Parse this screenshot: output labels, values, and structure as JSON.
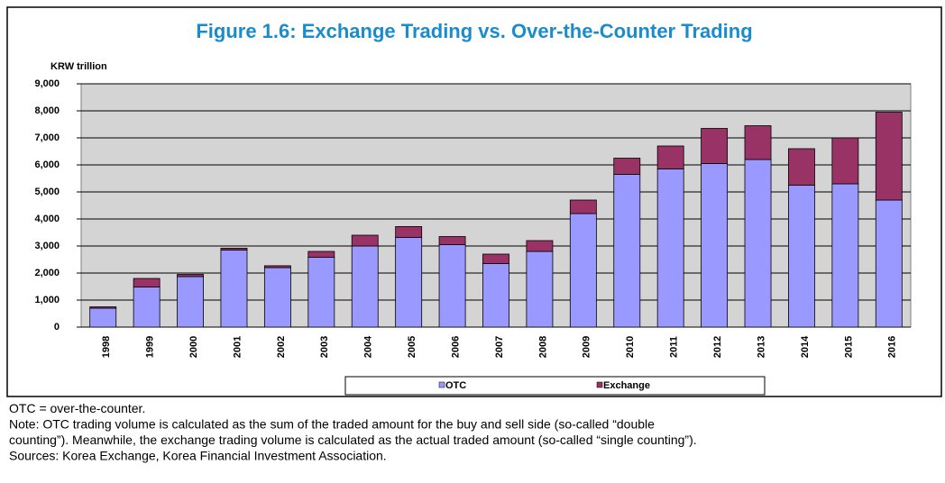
{
  "chart_data": {
    "type": "stacked_bar",
    "title": "Figure 1.6: Exchange Trading vs. Over-the-Counter Trading",
    "y_label": "KRW trillion",
    "categories": [
      "1998",
      "1999",
      "2000",
      "2001",
      "2002",
      "2003",
      "2004",
      "2005",
      "2006",
      "2007",
      "2008",
      "2009",
      "2010",
      "2011",
      "2012",
      "2013",
      "2014",
      "2015",
      "2016"
    ],
    "series": [
      {
        "name": "OTC",
        "color": "#9999ff",
        "values": [
          700,
          1480,
          1870,
          2850,
          2200,
          2580,
          3000,
          3320,
          3050,
          2350,
          2800,
          4200,
          5650,
          5850,
          6050,
          6200,
          5250,
          5300,
          4700
        ]
      },
      {
        "name": "Exchange",
        "color": "#993366",
        "values": [
          50,
          320,
          80,
          70,
          70,
          220,
          400,
          400,
          300,
          350,
          400,
          500,
          600,
          850,
          1300,
          1250,
          1350,
          1700,
          3250
        ]
      }
    ],
    "ylim": [
      0,
      9000
    ],
    "yticks": [
      0,
      {
        "value": 1000,
        "label": "1,000"
      },
      {
        "value": 2000,
        "label": "2,000"
      },
      {
        "value": 3000,
        "label": "3,000"
      },
      {
        "value": 4000,
        "label": "4,000"
      },
      {
        "value": 5000,
        "label": "5,000"
      },
      {
        "value": 6000,
        "label": "6,000"
      },
      {
        "value": 7000,
        "label": "7,000"
      },
      {
        "value": 8000,
        "label": "8,000"
      },
      {
        "value": 9000,
        "label": "9,000"
      }
    ],
    "grid": true,
    "legend": "bottom"
  },
  "notes": [
    "OTC = over-the-counter.",
    "Note: OTC trading volume is calculated as the sum of the traded amount for the buy and sell side (so-called “double",
    "counting”). Meanwhile, the exchange trading volume is calculated as the actual traded amount (so-called “single counting”).",
    "Sources: Korea Exchange, Korea Financial Investment Association."
  ]
}
